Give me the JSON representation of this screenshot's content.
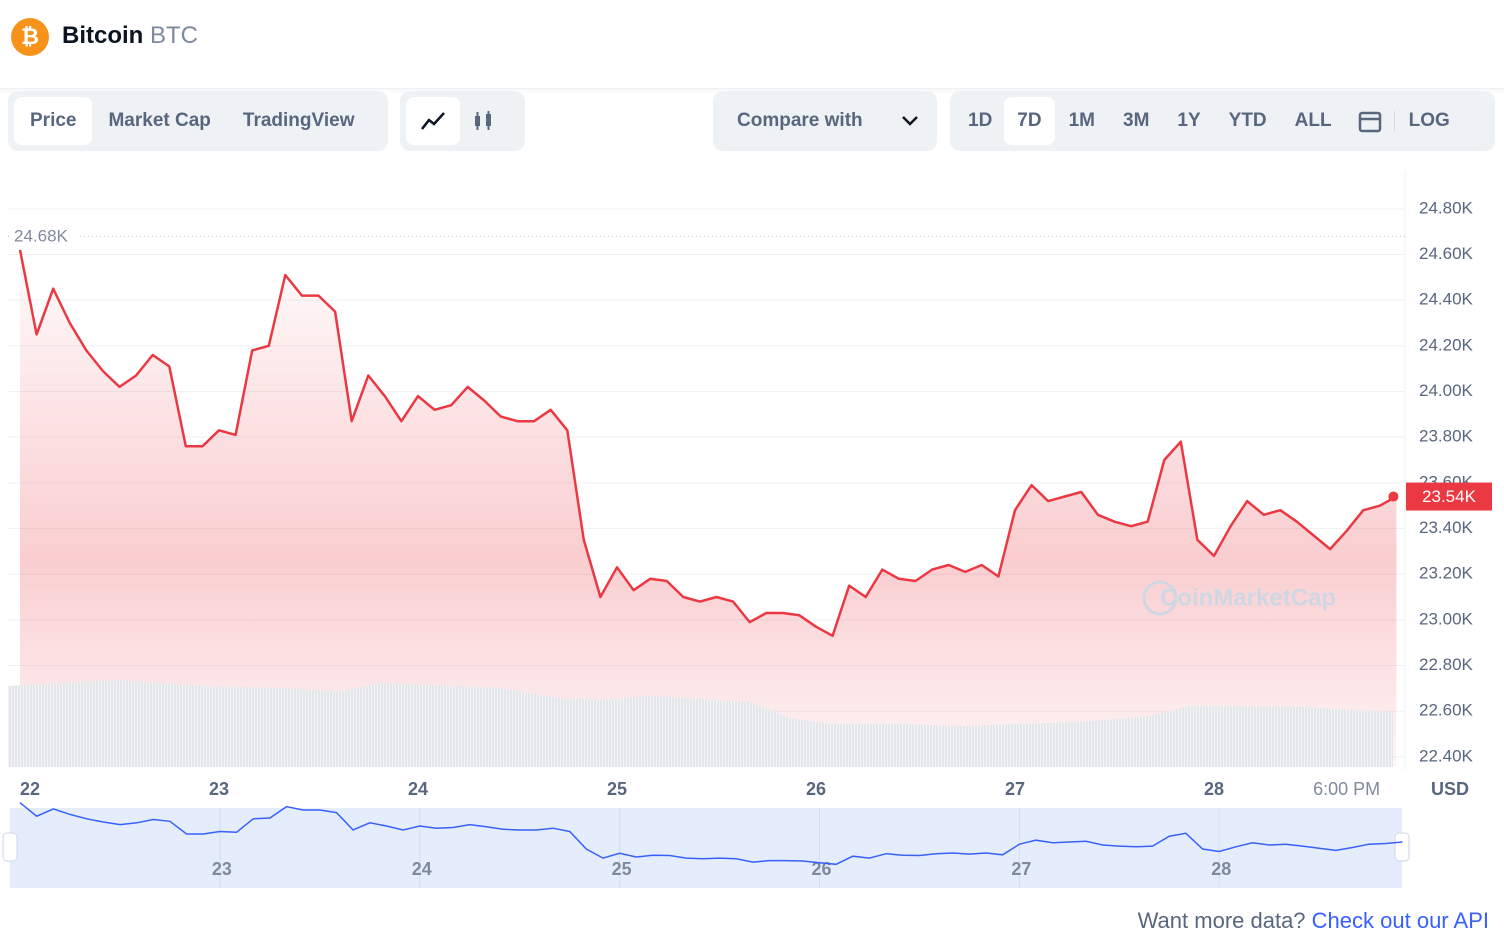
{
  "header": {
    "name": "Bitcoin",
    "symbol": "BTC"
  },
  "tabs": [
    "Price",
    "Market Cap",
    "TradingView"
  ],
  "compare": "Compare with",
  "ranges": [
    "1D",
    "7D",
    "1M",
    "3M",
    "1Y",
    "YTD",
    "ALL"
  ],
  "scale_toggle": "LOG",
  "footer": {
    "text": "Want more data?",
    "link": "Check out our API"
  },
  "chart_data": {
    "type": "line",
    "color": "#ea3943",
    "grid": true,
    "watermark": "CoinMarketCap",
    "y_unit": "USD",
    "categories": [
      "22",
      null,
      null,
      null,
      null,
      null,
      null,
      null,
      null,
      null,
      null,
      null,
      "23",
      null,
      null,
      null,
      null,
      null,
      null,
      null,
      null,
      null,
      null,
      null,
      "24",
      null,
      null,
      null,
      null,
      null,
      null,
      null,
      null,
      null,
      null,
      null,
      "25",
      null,
      null,
      null,
      null,
      null,
      null,
      null,
      null,
      null,
      null,
      null,
      "26",
      null,
      null,
      null,
      null,
      null,
      null,
      null,
      null,
      null,
      null,
      null,
      "27",
      null,
      null,
      null,
      null,
      null,
      null,
      null,
      null,
      null,
      null,
      null,
      "28",
      null,
      null,
      null,
      null,
      null,
      null,
      null,
      "6:00 PM",
      null,
      null,
      null
    ],
    "values": [
      24620,
      24250,
      24450,
      24300,
      24180,
      24090,
      24020,
      24070,
      24160,
      24110,
      23760,
      23760,
      23830,
      23810,
      24180,
      24200,
      24510,
      24420,
      24420,
      24350,
      23870,
      24070,
      23980,
      23870,
      23980,
      23920,
      23940,
      24020,
      23960,
      23890,
      23870,
      23870,
      23920,
      23830,
      23350,
      23100,
      23230,
      23130,
      23180,
      23170,
      23100,
      23080,
      23100,
      23080,
      22990,
      23030,
      23030,
      23020,
      22970,
      22930,
      23150,
      23100,
      23220,
      23180,
      23170,
      23220,
      23240,
      23210,
      23240,
      23190,
      23480,
      23590,
      23520,
      23540,
      23560,
      23460,
      23430,
      23410,
      23430,
      23700,
      23780,
      23350,
      23280,
      23410,
      23520,
      23460,
      23480,
      23430,
      23370,
      23310,
      23390,
      23480,
      23500,
      23540
    ],
    "ylim": [
      22360,
      24970
    ],
    "yticks": [
      {
        "value": 22400,
        "label": "22.40K"
      },
      {
        "value": 22600,
        "label": "22.60K"
      },
      {
        "value": 22800,
        "label": "22.80K"
      },
      {
        "value": 23000,
        "label": "23.00K"
      },
      {
        "value": 23200,
        "label": "23.20K"
      },
      {
        "value": 23400,
        "label": "23.40K"
      },
      {
        "value": 23600,
        "label": "23.60K"
      },
      {
        "value": 23800,
        "label": "23.80K"
      },
      {
        "value": 24000,
        "label": "24.00K"
      },
      {
        "value": 24200,
        "label": "24.20K"
      },
      {
        "value": 24400,
        "label": "24.40K"
      },
      {
        "value": 24600,
        "label": "24.60K"
      },
      {
        "value": 24800,
        "label": "24.80K"
      }
    ],
    "annotations": [
      {
        "value": 24680,
        "label": "24.68K"
      },
      {
        "value": 23540,
        "label": "23.54K"
      }
    ]
  }
}
